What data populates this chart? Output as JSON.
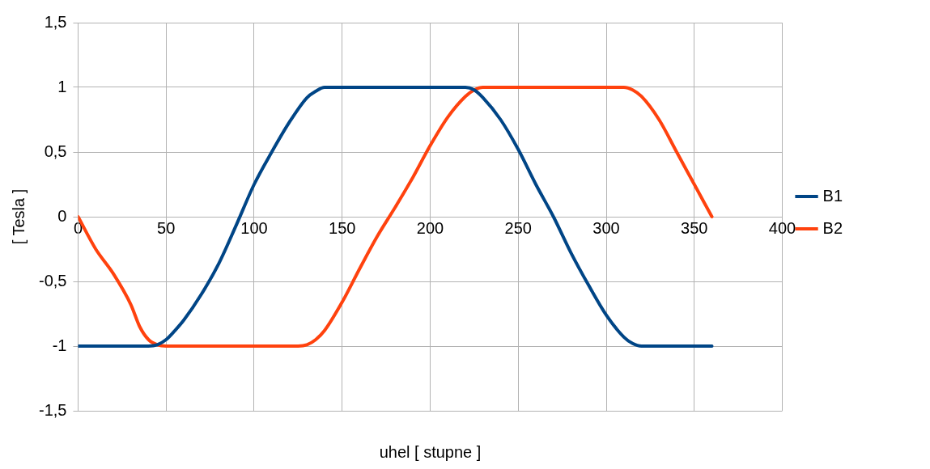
{
  "chart_data": {
    "type": "line",
    "xlabel": "uhel [ stupne ]",
    "ylabel": "[ Tesla ]",
    "xlim": [
      0,
      400
    ],
    "xticks": [
      0,
      50,
      100,
      150,
      200,
      250,
      300,
      350,
      400
    ],
    "ylim": [
      -1.5,
      1.5
    ],
    "yticks": [
      {
        "value": -1.5,
        "label": "-1,5"
      },
      -1,
      {
        "value": -0.5,
        "label": "-0,5"
      },
      0,
      {
        "value": 0.5,
        "label": "0,5"
      },
      1,
      {
        "value": 1.5,
        "label": "1,5"
      }
    ],
    "grid": true,
    "legend": "right",
    "marker": "none",
    "line_style": "solid",
    "series": [
      {
        "name": "B1",
        "color": "#004586",
        "x": [
          0,
          10,
          20,
          30,
          40,
          45,
          50,
          55,
          60,
          70,
          80,
          90,
          100,
          110,
          120,
          130,
          135,
          140,
          150,
          180,
          210,
          220,
          225,
          230,
          240,
          250,
          260,
          270,
          280,
          290,
          300,
          310,
          315,
          320,
          330,
          360
        ],
        "values": [
          -1,
          -1,
          -1,
          -1,
          -1,
          -0.99,
          -0.95,
          -0.88,
          -0.8,
          -0.6,
          -0.36,
          -0.06,
          0.25,
          0.5,
          0.73,
          0.92,
          0.97,
          1,
          1,
          1,
          1,
          1,
          0.98,
          0.92,
          0.75,
          0.52,
          0.25,
          0,
          -0.28,
          -0.53,
          -0.76,
          -0.93,
          -0.98,
          -1,
          -1,
          -1
        ]
      },
      {
        "name": "B2",
        "color": "#ff420e",
        "x": [
          0,
          10,
          20,
          30,
          35,
          40,
          45,
          50,
          80,
          125,
          130,
          135,
          140,
          150,
          160,
          170,
          180,
          190,
          200,
          210,
          220,
          225,
          230,
          270,
          310,
          315,
          320,
          330,
          340,
          350,
          360
        ],
        "values": [
          0,
          -0.25,
          -0.44,
          -0.68,
          -0.85,
          -0.95,
          -0.99,
          -1,
          -1,
          -1,
          -0.99,
          -0.95,
          -0.88,
          -0.66,
          -0.4,
          -0.15,
          0.07,
          0.3,
          0.55,
          0.77,
          0.93,
          0.98,
          1,
          1,
          1,
          0.98,
          0.93,
          0.75,
          0.5,
          0.25,
          0
        ]
      }
    ]
  }
}
